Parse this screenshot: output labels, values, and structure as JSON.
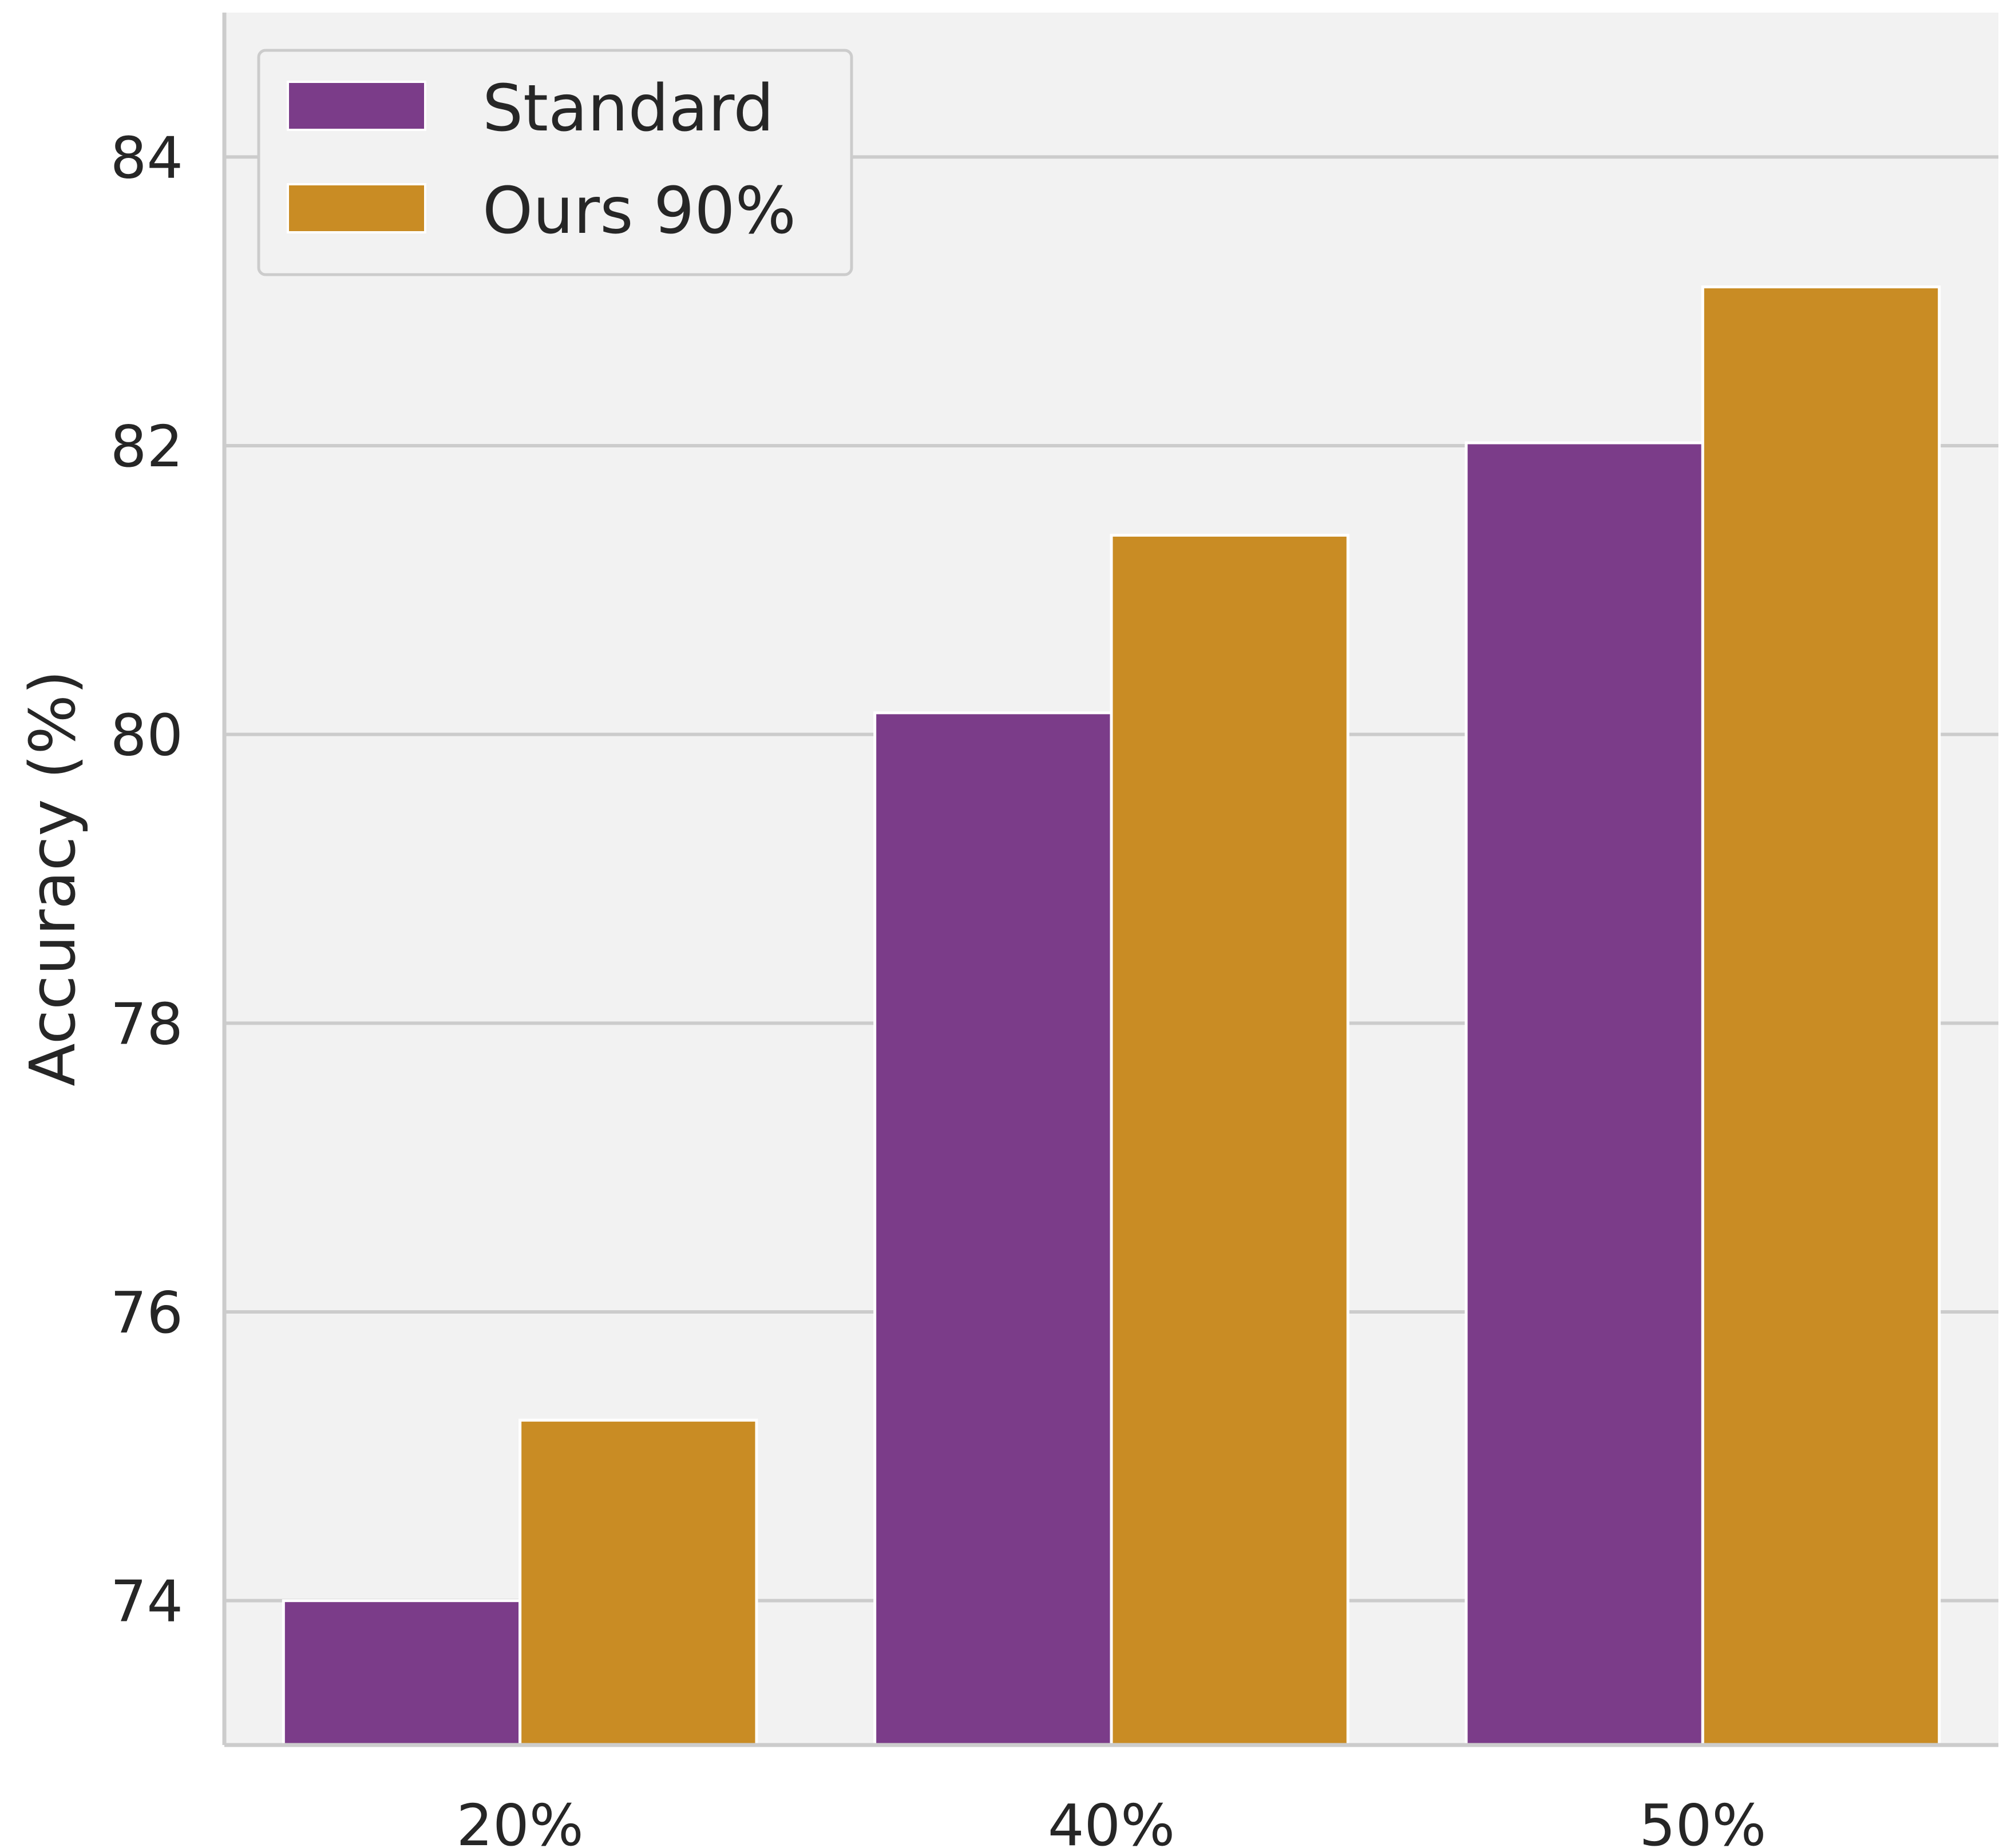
{
  "chart_data": {
    "type": "bar",
    "title": "",
    "xlabel": "",
    "ylabel": "Accuracy (%)",
    "categories": [
      "20%",
      "40%",
      "50%"
    ],
    "series": [
      {
        "name": "Standard",
        "color": "#7b3c89",
        "values": [
          74.0,
          80.15,
          82.02
        ]
      },
      {
        "name": "Ours 90%",
        "color": "#c98c24",
        "values": [
          75.25,
          81.38,
          83.1
        ]
      }
    ],
    "ylim": [
      73.0,
      85.0
    ],
    "yticks": [
      74,
      76,
      78,
      80,
      82,
      84
    ],
    "grid": true,
    "legend_position": "top-left",
    "background_color": "#f2f2f2",
    "grid_color": "#cccccc"
  }
}
